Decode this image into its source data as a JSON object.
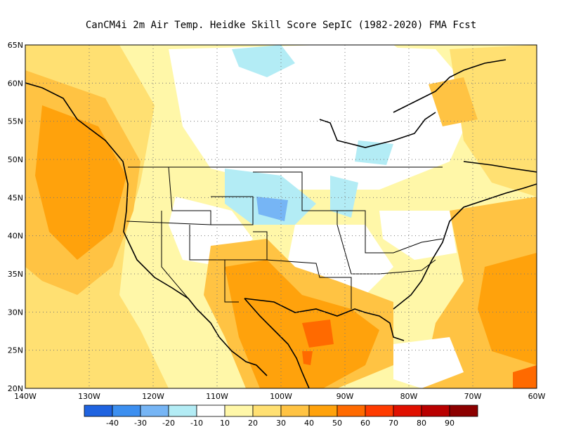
{
  "title": "CanCM4i  2m Air Temp. Heidke Skill Score SepIC (1982-2020) FMA Fcst",
  "map": {
    "lon_range": [
      -140,
      -60
    ],
    "lat_range": [
      20,
      65
    ],
    "lat_labels": [
      "20N",
      "25N",
      "30N",
      "35N",
      "40N",
      "45N",
      "50N",
      "55N",
      "60N",
      "65N"
    ],
    "lon_labels": [
      "140W",
      "130W",
      "120W",
      "110W",
      "100W",
      "90W",
      "80W",
      "70W",
      "60W"
    ],
    "grid": "dotted"
  },
  "colorbar": {
    "colors": [
      "#1f63e0",
      "#3c8ff0",
      "#76b5f5",
      "#b3ecf5",
      "#ffffff",
      "#fff7a8",
      "#ffe072",
      "#ffc343",
      "#ffa20c",
      "#ff6a00",
      "#ff3b00",
      "#e01000",
      "#b90000",
      "#8c0000"
    ],
    "labels": [
      "-40",
      "-30",
      "-20",
      "-10",
      "10",
      "20",
      "30",
      "40",
      "50",
      "60",
      "70",
      "80",
      "90"
    ]
  }
}
